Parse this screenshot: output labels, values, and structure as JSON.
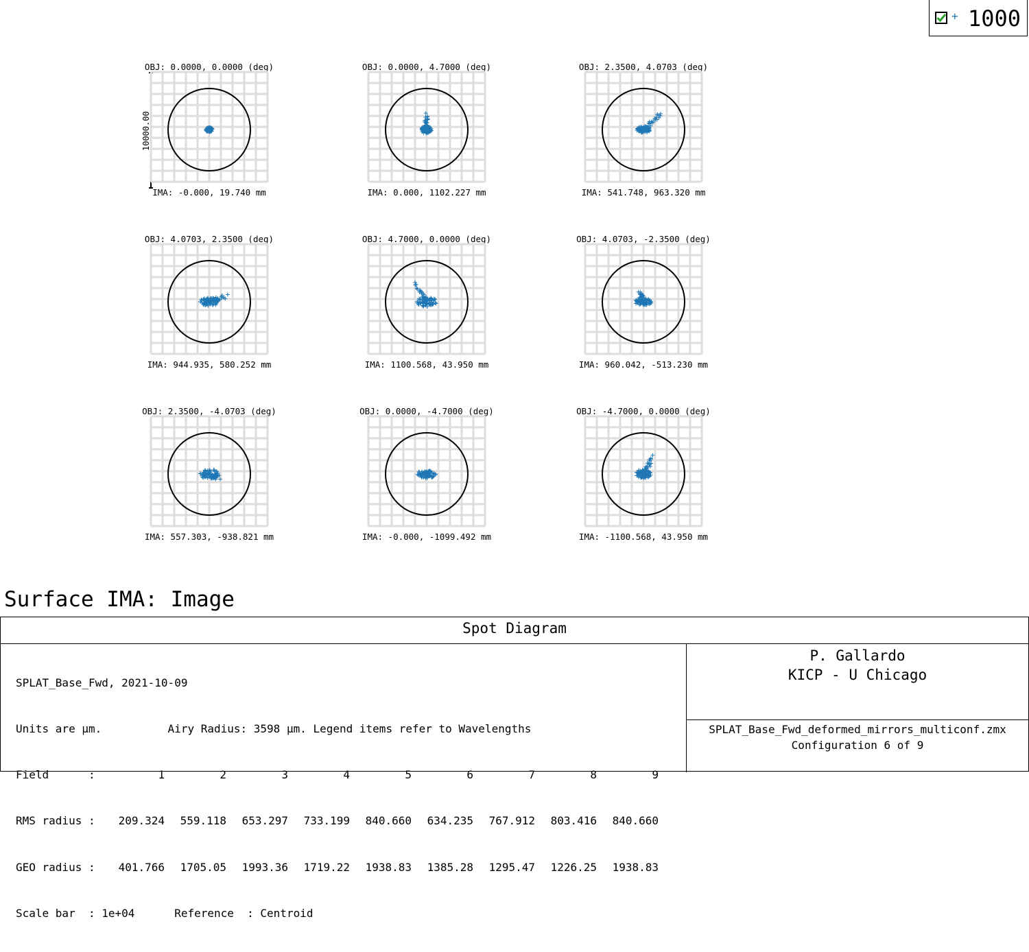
{
  "legend": {
    "checked": true,
    "marker": "+",
    "label": "1000",
    "color": "#1f77b4"
  },
  "scale_bar_label": "10000.00",
  "chart_data": {
    "type": "scatter",
    "grid": true,
    "marker_color": "#1f77b4",
    "fields": [
      {
        "field": 1,
        "obj": "OBJ: 0.0000, 0.0000 (deg)",
        "ima": "IMA: -0.000, 19.740 mm",
        "rms_um": 209.324,
        "geo_um": 401.766
      },
      {
        "field": 2,
        "obj": "OBJ: 0.0000, 4.7000 (deg)",
        "ima": "IMA: 0.000, 1102.227 mm",
        "rms_um": 559.118,
        "geo_um": 1705.05
      },
      {
        "field": 3,
        "obj": "OBJ: 2.3500, 4.0703 (deg)",
        "ima": "IMA: 541.748, 963.320 mm",
        "rms_um": 653.297,
        "geo_um": 1993.36
      },
      {
        "field": 4,
        "obj": "OBJ: 4.0703, 2.3500 (deg)",
        "ima": "IMA: 944.935, 580.252 mm",
        "rms_um": 733.199,
        "geo_um": 1719.22
      },
      {
        "field": 5,
        "obj": "OBJ: 4.7000, 0.0000 (deg)",
        "ima": "IMA: 1100.568, 43.950 mm",
        "rms_um": 840.66,
        "geo_um": 1938.83
      },
      {
        "field": 6,
        "obj": "OBJ: 4.0703, -2.3500 (deg)",
        "ima": "IMA: 960.042, -513.230 mm",
        "rms_um": 634.235,
        "geo_um": 1385.28
      },
      {
        "field": 7,
        "obj": "OBJ: 2.3500, -4.0703 (deg)",
        "ima": "IMA: 557.303, -938.821 mm",
        "rms_um": 767.912,
        "geo_um": 1295.47
      },
      {
        "field": 8,
        "obj": "OBJ: 0.0000, -4.7000 (deg)",
        "ima": "IMA: -0.000, -1099.492 mm",
        "rms_um": 803.416,
        "geo_um": 1226.25
      },
      {
        "field": 9,
        "obj": "OBJ: -4.7000, 0.0000 (deg)",
        "ima": "IMA: -1100.568, 43.950 mm",
        "rms_um": 840.66,
        "geo_um": 1938.83
      }
    ]
  },
  "surface_title": "Surface IMA: Image",
  "info": {
    "title": "Spot Diagram",
    "line1": "SPLAT_Base_Fwd, 2021-10-09",
    "line2": "Units are µm.          Airy Radius: 3598 µm. Legend items refer to Wavelengths",
    "field_label": "Field      :",
    "rms_label": "RMS radius :",
    "geo_label": "GEO radius :",
    "field_values": [
      "1",
      "2",
      "3",
      "4",
      "5",
      "6",
      "7",
      "8",
      "9"
    ],
    "rms_values": [
      "209.324",
      "559.118",
      "653.297",
      "733.199",
      "840.660",
      "634.235",
      "767.912",
      "803.416",
      "840.660"
    ],
    "geo_values": [
      "401.766",
      "1705.05",
      "1993.36",
      "1719.22",
      "1938.83",
      "1385.28",
      "1295.47",
      "1226.25",
      "1938.83"
    ],
    "line_scale": "Scale bar  : 1e+04      Reference  : Centroid",
    "author": "P. Gallardo",
    "institution": "KICP - U Chicago",
    "file": "SPLAT_Base_Fwd_deformed_mirrors_multiconf.zmx",
    "configuration": "Configuration 6 of 9"
  }
}
